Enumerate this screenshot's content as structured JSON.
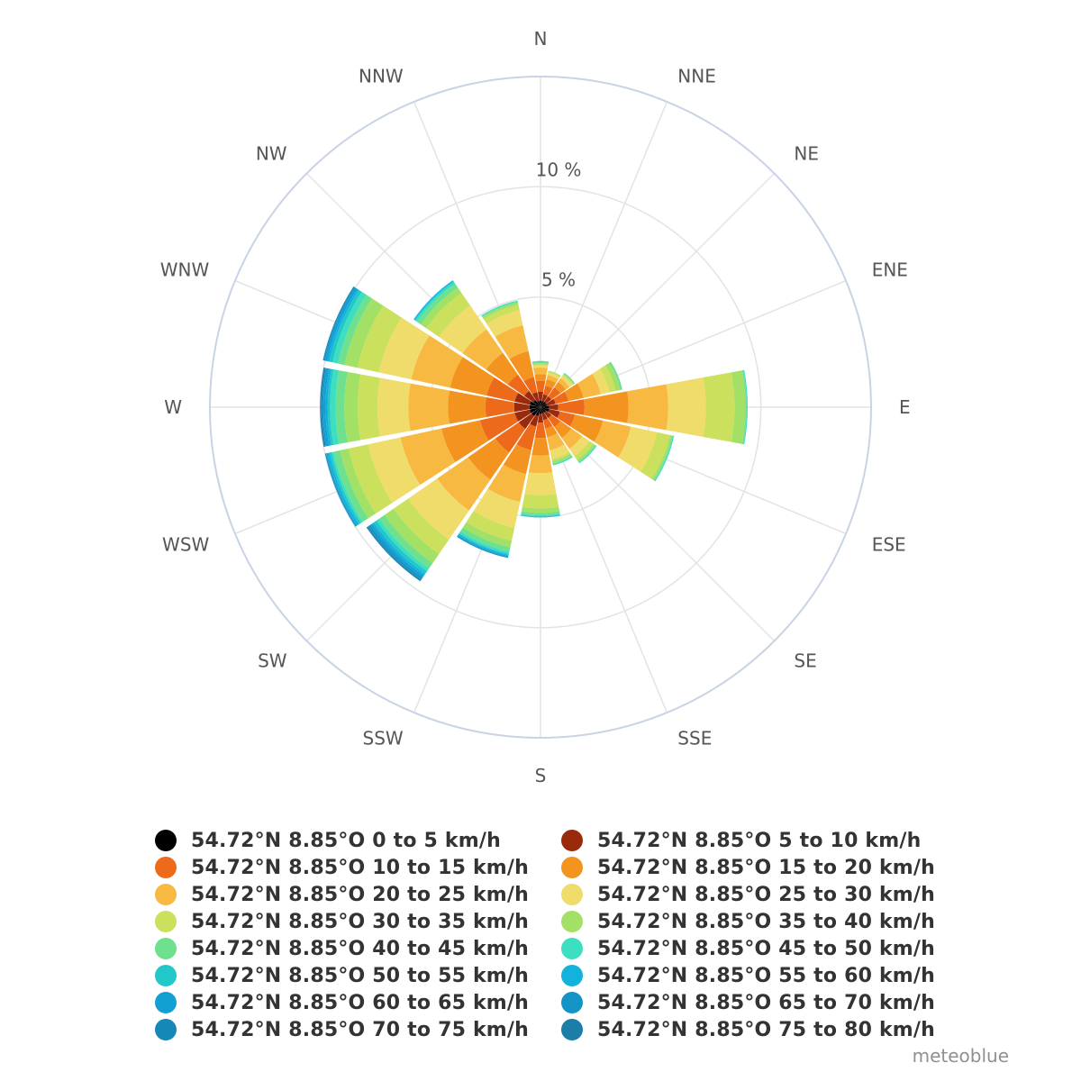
{
  "chart_data": {
    "type": "windrose",
    "directions": [
      "N",
      "NNE",
      "NE",
      "ENE",
      "E",
      "ESE",
      "SE",
      "SSE",
      "S",
      "SSW",
      "SW",
      "WSW",
      "W",
      "WNW",
      "NW",
      "NNW"
    ],
    "radial_axis": {
      "max": 15,
      "tick_labels": [
        "5 %",
        "10 %"
      ],
      "tick_values": [
        5,
        10
      ],
      "unit": "%"
    },
    "bins": [
      {
        "name": "54.72°N 8.85°O 0 to 5 km/h",
        "color": "#000000"
      },
      {
        "name": "54.72°N 8.85°O 5 to 10 km/h",
        "color": "#992a0c"
      },
      {
        "name": "54.72°N 8.85°O 10 to 15 km/h",
        "color": "#ec6a1a"
      },
      {
        "name": "54.72°N 8.85°O 15 to 20 km/h",
        "color": "#f39420"
      },
      {
        "name": "54.72°N 8.85°O 20 to 25 km/h",
        "color": "#f7b942"
      },
      {
        "name": "54.72°N 8.85°O 25 to 30 km/h",
        "color": "#f0dc6a"
      },
      {
        "name": "54.72°N 8.85°O 30 to 35 km/h",
        "color": "#cbe05c"
      },
      {
        "name": "54.72°N 8.85°O 35 to 40 km/h",
        "color": "#a3e066"
      },
      {
        "name": "54.72°N 8.85°O 40 to 45 km/h",
        "color": "#6ee08e"
      },
      {
        "name": "54.72°N 8.85°O 45 to 50 km/h",
        "color": "#3ddfc0"
      },
      {
        "name": "54.72°N 8.85°O 50 to 55 km/h",
        "color": "#22c8c9"
      },
      {
        "name": "54.72°N 8.85°O 55 to 60 km/h",
        "color": "#12b2dc"
      },
      {
        "name": "54.72°N 8.85°O 60 to 65 km/h",
        "color": "#12a0d2"
      },
      {
        "name": "54.72°N 8.85°O 65 to 70 km/h",
        "color": "#1393c6"
      },
      {
        "name": "54.72°N 8.85°O 70 to 75 km/h",
        "color": "#1688b8"
      },
      {
        "name": "54.72°N 8.85°O 75 to 80 km/h",
        "color": "#1a7ea8"
      }
    ],
    "cumulative_percent": [
      [
        0.3,
        0.7,
        1.2,
        1.5,
        1.8,
        1.9,
        1.95,
        2.0,
        2.05,
        2.1,
        2.1,
        2.1,
        2.1,
        2.1,
        2.1,
        2.1
      ],
      [
        0.3,
        0.6,
        1.0,
        1.3,
        1.5,
        1.6,
        1.65,
        1.7,
        1.7,
        1.7,
        1.7,
        1.7,
        1.7,
        1.7,
        1.7,
        1.7
      ],
      [
        0.3,
        0.6,
        1.1,
        1.4,
        1.6,
        1.75,
        1.8,
        1.85,
        1.9,
        1.9,
        1.9,
        1.9,
        1.9,
        1.9,
        1.9,
        1.9
      ],
      [
        0.3,
        0.7,
        1.3,
        2.0,
        2.8,
        3.2,
        3.5,
        3.7,
        3.8,
        3.8,
        3.8,
        3.8,
        3.8,
        3.8,
        3.8,
        3.8
      ],
      [
        0.4,
        0.8,
        2.0,
        4.0,
        5.8,
        7.5,
        8.8,
        9.3,
        9.35,
        9.4,
        9.4,
        9.4,
        9.4,
        9.4,
        9.4,
        9.4
      ],
      [
        0.4,
        0.9,
        1.6,
        2.9,
        4.2,
        5.4,
        6.0,
        6.1,
        6.15,
        6.2,
        6.2,
        6.2,
        6.2,
        6.2,
        6.2,
        6.2
      ],
      [
        0.3,
        0.6,
        1.1,
        1.7,
        2.3,
        2.7,
        2.9,
        3.0,
        3.05,
        3.1,
        3.1,
        3.1,
        3.1,
        3.1,
        3.1,
        3.1
      ],
      [
        0.3,
        0.6,
        1.0,
        1.4,
        2.0,
        2.4,
        2.5,
        2.6,
        2.65,
        2.7,
        2.7,
        2.7,
        2.7,
        2.7,
        2.7,
        2.7
      ],
      [
        0.3,
        0.7,
        1.4,
        2.2,
        3.0,
        4.0,
        4.6,
        4.8,
        4.9,
        4.95,
        5.0,
        5.0,
        5.0,
        5.0,
        5.0,
        5.0
      ],
      [
        0.4,
        0.9,
        2.0,
        3.1,
        4.4,
        5.6,
        6.2,
        6.5,
        6.7,
        6.8,
        6.85,
        6.9,
        6.95,
        7.0,
        7.0,
        7.0
      ],
      [
        0.5,
        1.2,
        2.5,
        4.0,
        5.7,
        7.3,
        8.1,
        8.6,
        8.9,
        9.05,
        9.2,
        9.3,
        9.4,
        9.5,
        9.55,
        9.6
      ],
      [
        0.5,
        1.2,
        2.8,
        4.6,
        6.5,
        8.0,
        8.9,
        9.3,
        9.6,
        9.7,
        9.8,
        9.9,
        9.95,
        10.0,
        10.0,
        10.0
      ],
      [
        0.5,
        1.2,
        2.5,
        4.2,
        6.0,
        7.4,
        8.3,
        8.9,
        9.3,
        9.55,
        9.65,
        9.75,
        9.85,
        9.9,
        9.95,
        10.0
      ],
      [
        0.5,
        1.2,
        2.5,
        4.2,
        6.0,
        7.5,
        8.5,
        9.1,
        9.4,
        9.65,
        9.8,
        9.9,
        10.0,
        10.05,
        10.1,
        10.1
      ],
      [
        0.4,
        0.9,
        1.8,
        3.0,
        4.3,
        5.6,
        6.3,
        6.6,
        6.8,
        6.9,
        6.95,
        7.0,
        7.0,
        7.0,
        7.0,
        7.0
      ],
      [
        0.3,
        0.7,
        1.4,
        2.6,
        3.8,
        4.5,
        4.75,
        4.85,
        4.9,
        4.95,
        4.95,
        4.95,
        4.95,
        4.95,
        4.95,
        4.95
      ]
    ],
    "grid": true,
    "legend_position": "bottom"
  },
  "credit": "meteoblue"
}
